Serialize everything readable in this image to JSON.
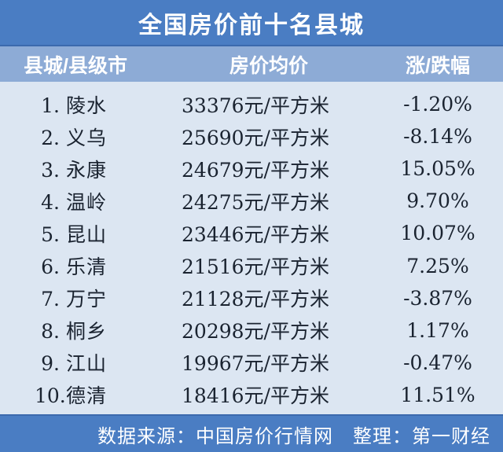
{
  "title": "全国房价前十名县城",
  "table": {
    "headers": [
      "县城/县级市",
      "房价均价",
      "涨/跌幅"
    ],
    "rows": [
      {
        "rank": "1.",
        "name": "陵水",
        "price": "33376元/平方米",
        "change": "-1.20%"
      },
      {
        "rank": "2.",
        "name": "义乌",
        "price": "25690元/平方米",
        "change": "-8.14%"
      },
      {
        "rank": "3.",
        "name": "永康",
        "price": "24679元/平方米",
        "change": "15.05%"
      },
      {
        "rank": "4.",
        "name": "温岭",
        "price": "24275元/平方米",
        "change": "9.70%"
      },
      {
        "rank": "5.",
        "name": "昆山",
        "price": "23446元/平方米",
        "change": "10.07%"
      },
      {
        "rank": "6.",
        "name": "乐清",
        "price": "21516元/平方米",
        "change": "7.25%"
      },
      {
        "rank": "7.",
        "name": "万宁",
        "price": "21128元/平方米",
        "change": "-3.87%"
      },
      {
        "rank": "8.",
        "name": "桐乡",
        "price": "20298元/平方米",
        "change": "1.17%"
      },
      {
        "rank": "9.",
        "name": "江山",
        "price": "19967元/平方米",
        "change": "-0.47%"
      },
      {
        "rank": "10.",
        "name": "德清",
        "price": "18416元/平方米",
        "change": "11.51%"
      }
    ]
  },
  "footer": {
    "text": "数据来源：中国房价行情网　整理：第一财经"
  },
  "colors": {
    "title_bar": "#4a7dc3",
    "header_band": "#8dabd6",
    "body_background": "#dce6f2",
    "body_text": "#1a2330",
    "bar_text": "#ffffff",
    "divider_line": "#3b69ad"
  },
  "chart_data": {
    "type": "table",
    "title": "全国房价前十名县城",
    "columns": [
      "县城/县级市",
      "房价均价",
      "涨/跌幅"
    ],
    "rows": [
      {
        "rank": 1,
        "county": "陵水",
        "avg_price_yuan_per_sqm": 33376,
        "change_pct": -1.2
      },
      {
        "rank": 2,
        "county": "义乌",
        "avg_price_yuan_per_sqm": 25690,
        "change_pct": -8.14
      },
      {
        "rank": 3,
        "county": "永康",
        "avg_price_yuan_per_sqm": 24679,
        "change_pct": 15.05
      },
      {
        "rank": 4,
        "county": "温岭",
        "avg_price_yuan_per_sqm": 24275,
        "change_pct": 9.7
      },
      {
        "rank": 5,
        "county": "昆山",
        "avg_price_yuan_per_sqm": 23446,
        "change_pct": 10.07
      },
      {
        "rank": 6,
        "county": "乐清",
        "avg_price_yuan_per_sqm": 21516,
        "change_pct": 7.25
      },
      {
        "rank": 7,
        "county": "万宁",
        "avg_price_yuan_per_sqm": 21128,
        "change_pct": -3.87
      },
      {
        "rank": 8,
        "county": "桐乡",
        "avg_price_yuan_per_sqm": 20298,
        "change_pct": 1.17
      },
      {
        "rank": 9,
        "county": "江山",
        "avg_price_yuan_per_sqm": 19967,
        "change_pct": -0.47
      },
      {
        "rank": 10,
        "county": "德清",
        "avg_price_yuan_per_sqm": 18416,
        "change_pct": 11.51
      }
    ],
    "source": "中国房价行情网",
    "compiled_by": "第一财经"
  }
}
